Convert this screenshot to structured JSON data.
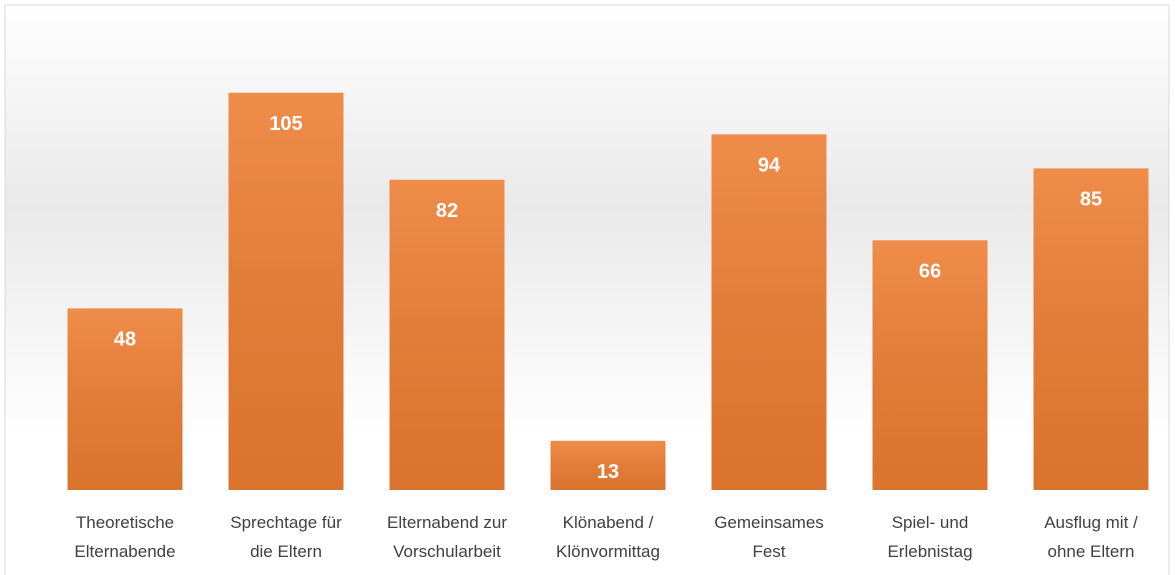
{
  "chart_data": {
    "type": "bar",
    "categories": [
      "Theoretische\nElternabende",
      "Sprechtage für\ndie Eltern",
      "Elternabend zur\nVorschularbeit",
      "Klönabend /\nKlönvormittag",
      "Gemeinsames\nFest",
      "Spiel- und\nErlebnistag",
      "Ausflug mit /\nohne Eltern"
    ],
    "values": [
      48,
      105,
      82,
      13,
      94,
      66,
      85
    ],
    "color": "#ed7d31",
    "ylim": [
      0,
      120
    ]
  }
}
